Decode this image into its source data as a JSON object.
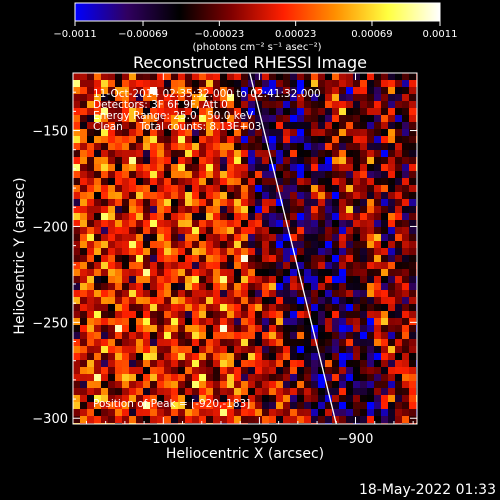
{
  "chart_data": {
    "type": "heatmap",
    "title": "Reconstructed RHESSI Image",
    "xlabel": "Heliocentric X (arcsec)",
    "ylabel": "Heliocentric Y (arcsec)",
    "xlim": [
      -1047,
      -868
    ],
    "ylim": [
      -303,
      -120
    ],
    "xticks": [
      -1000,
      -950,
      -900
    ],
    "xtick_labels": [
      "−1000",
      "−950",
      "−900"
    ],
    "yticks": [
      -150,
      -200,
      -250,
      -300
    ],
    "ytick_labels": [
      "−150",
      "−200",
      "−250",
      "−300"
    ],
    "colorbar": {
      "min": -0.0011,
      "max": 0.0011,
      "ticks": [
        -0.0011,
        -0.00069,
        -0.00023,
        0.00023,
        0.00069,
        0.0011
      ],
      "tick_labels": [
        "−0.0011",
        "−0.00069",
        "−0.00023",
        "0.00023",
        "0.00069",
        "0.0011"
      ],
      "units_label": "(photons cm⁻² s⁻¹ asec⁻²)",
      "stops": [
        "#0000ff",
        "#300060",
        "#000000",
        "#800000",
        "#ff2000",
        "#ff9000",
        "#ffff40",
        "#ffffff"
      ]
    },
    "info_lines": [
      "11-Oct-2014 02:35:32.000 to 02:41:32.000",
      "Detectors: 3F 6F 9F, Att 0",
      "Energy Range: 25.0 - 50.0 keV",
      "Clean     Total counts: 8.13E+03"
    ],
    "peak_label": "Position of Peak = [-920,-183]",
    "peak": [
      -920,
      -183
    ],
    "limb_line": [
      [
        -955,
        -120
      ],
      [
        -910,
        -303
      ]
    ],
    "grid": false
  },
  "footer": {
    "timestamp": "18-May-2022 01:33"
  }
}
